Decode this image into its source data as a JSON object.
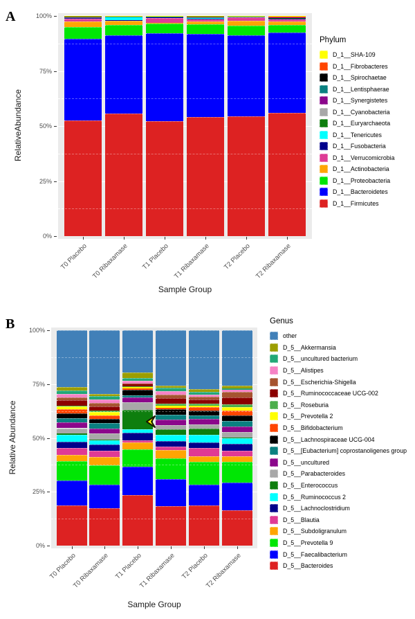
{
  "figure": {
    "background": "#ffffff",
    "panel_a_letter": "A",
    "panel_b_letter": "B"
  },
  "chart_data": [
    {
      "type": "bar",
      "variant": "stacked-percent",
      "panel": "A",
      "ylabel": "RelativeAbundance",
      "xlabel": "Sample Group",
      "legend_title": "Phylum",
      "legend_position": "right",
      "ylim": [
        0,
        100
      ],
      "grid": "white major and dashed minor lines on gray panel",
      "yticks": [
        {
          "value": 0,
          "label": "0%"
        },
        {
          "value": 25,
          "label": "25%"
        },
        {
          "value": 50,
          "label": "50%"
        },
        {
          "value": 75,
          "label": "75%"
        },
        {
          "value": 100,
          "label": "100%"
        }
      ],
      "categories": [
        "T0 Placebo",
        "T0 Ribaxamase",
        "T1 Placebo",
        "T1 Ribaxamase",
        "T2 Placebo",
        "T2 Ribaxamase"
      ],
      "stacking_note": "series listed bottom-to-top; legend shows reverse order",
      "series": [
        {
          "name": "D_1__Firmicutes",
          "color": "#DD2222",
          "values": [
            52.4,
            55.8,
            52.4,
            54.0,
            54.5,
            56.0
          ]
        },
        {
          "name": "D_1__Bacteroidetes",
          "color": "#0000FE",
          "values": [
            37.3,
            35.4,
            39.9,
            37.8,
            36.9,
            36.3
          ]
        },
        {
          "name": "D_1__Proteobacteria",
          "color": "#00E604",
          "values": [
            5.3,
            4.6,
            4.5,
            4.5,
            4.4,
            3.7
          ]
        },
        {
          "name": "D_1__Actinobacteria",
          "color": "#FFA503",
          "values": [
            2.4,
            2.0,
            0.5,
            1.2,
            2.3,
            1.5
          ]
        },
        {
          "name": "D_1__Verrucomicrobia",
          "color": "#DE3C96",
          "values": [
            1.3,
            0.3,
            2.2,
            1.0,
            1.7,
            0.8
          ]
        },
        {
          "name": "D_1__Fusobacteria",
          "color": "#00008B",
          "values": [
            0.5,
            0.15,
            0.3,
            0.5,
            0.1,
            0.4
          ]
        },
        {
          "name": "D_1__Tenericutes",
          "color": "#00FFFF",
          "values": [
            0.1,
            1.3,
            0.1,
            0.2,
            0.05,
            0.3
          ]
        },
        {
          "name": "D_1__Euryarchaeota",
          "color": "#0E7E0E",
          "values": [
            0.1,
            0.1,
            0.05,
            0.2,
            0.05,
            0.2
          ]
        },
        {
          "name": "D_1__Cyanobacteria",
          "color": "#A8A8A8",
          "values": [
            0.1,
            0.05,
            0.05,
            0.1,
            0.05,
            0.2
          ]
        },
        {
          "name": "D_1__Synergistetes",
          "color": "#8B078B",
          "values": [
            0.1,
            0.05,
            0.05,
            0.1,
            0.05,
            0.1
          ]
        },
        {
          "name": "D_1__Lentisphaerae",
          "color": "#0A8080",
          "values": [
            0.1,
            0.05,
            0.05,
            0.1,
            0.05,
            0.1
          ]
        },
        {
          "name": "D_1__Spirochaetae",
          "color": "#000000",
          "values": [
            0.1,
            0.05,
            0.05,
            0.1,
            0.05,
            0.1
          ]
        },
        {
          "name": "D_1__Fibrobacteres",
          "color": "#FF4500",
          "values": [
            0.1,
            0.05,
            0.05,
            0.1,
            0.05,
            0.1
          ]
        },
        {
          "name": "D_1__SHA-109",
          "color": "#FFFF00",
          "values": [
            0.1,
            0.1,
            0.1,
            0.1,
            0.1,
            0.2
          ]
        }
      ]
    },
    {
      "type": "bar",
      "variant": "stacked-percent",
      "panel": "B",
      "ylabel": "Relative Abundance",
      "xlabel": "Sample Group",
      "legend_title": "Genus",
      "legend_position": "right",
      "ylim": [
        0,
        100
      ],
      "grid": "white major and dashed minor lines on gray panel",
      "yticks": [
        {
          "value": 0,
          "label": "0%"
        },
        {
          "value": 25,
          "label": "25%"
        },
        {
          "value": 50,
          "label": "50%"
        },
        {
          "value": 75,
          "label": "75%"
        },
        {
          "value": 100,
          "label": "100%"
        }
      ],
      "categories": [
        "T0 Placebo",
        "T0 Ribaxamase",
        "T1 Placebo",
        "T1 Ribaxamase",
        "T2 Placebo",
        "T2 Ribaxamase"
      ],
      "stacking_note": "series listed bottom-to-top; legend shows reverse order",
      "series": [
        {
          "name": "D_5__Bacteroides",
          "color": "#DD2222",
          "values": [
            18.6,
            17.4,
            23.5,
            18.2,
            18.6,
            16.5
          ]
        },
        {
          "name": "D_5__Faecalibacterium",
          "color": "#0000FE",
          "values": [
            11.6,
            11.0,
            13.3,
            12.8,
            9.8,
            12.6
          ]
        },
        {
          "name": "D_5__Prevotella 9",
          "color": "#00E604",
          "values": [
            9.0,
            9.0,
            8.0,
            9.5,
            10.5,
            9.8
          ]
        },
        {
          "name": "D_5__Subdoligranulum",
          "color": "#FFA503",
          "values": [
            3.0,
            3.7,
            3.2,
            4.0,
            2.7,
            2.6
          ]
        },
        {
          "name": "D_5__Blautia",
          "color": "#E03A94",
          "values": [
            3.0,
            3.1,
            1.0,
            1.6,
            3.7,
            2.6
          ]
        },
        {
          "name": "D_5__Lachnoclostridium",
          "color": "#00008B",
          "values": [
            3.0,
            2.6,
            3.4,
            2.6,
            2.6,
            3.2
          ]
        },
        {
          "name": "D_5__Ruminococcus 2",
          "color": "#00FFFF",
          "values": [
            3.2,
            2.1,
            1.6,
            2.6,
            3.7,
            2.6
          ]
        },
        {
          "name": "D_5__Enterococcus",
          "color": "#0E7E0E",
          "values": [
            0.6,
            0.4,
            9.0,
            2.6,
            2.6,
            0.3
          ]
        },
        {
          "name": "D_5__Parabacteroides",
          "color": "#A8A8A8",
          "values": [
            2.5,
            2.8,
            3.4,
            1.9,
            2.1,
            2.6
          ]
        },
        {
          "name": "D_5__uncultured",
          "color": "#8B078B",
          "values": [
            2.6,
            2.1,
            2.4,
            2.8,
            2.6,
            2.6
          ]
        },
        {
          "name": "D_5__[Eubacterium] coprostanoligenes group",
          "color": "#0A8080",
          "values": [
            2.1,
            2.6,
            1.0,
            2.1,
            1.6,
            2.6
          ]
        },
        {
          "name": "D_5__Lachnospiraceae UCG-004",
          "color": "#000000",
          "values": [
            2.2,
            2.1,
            2.6,
            2.6,
            2.1,
            2.6
          ]
        },
        {
          "name": "D_5__Bifidobacterium",
          "color": "#FF4500",
          "values": [
            2.1,
            1.6,
            0.5,
            0.8,
            1.6,
            2.1
          ]
        },
        {
          "name": "D_5__Prevotella 2",
          "color": "#FFFF00",
          "values": [
            1.0,
            1.6,
            0.8,
            0.8,
            0.8,
            1.5
          ]
        },
        {
          "name": "D_5__Roseburia",
          "color": "#4BAE4B",
          "values": [
            0.6,
            0.5,
            0.4,
            1.0,
            1.0,
            1.5
          ]
        },
        {
          "name": "D_5__Ruminococcaceae UCG-002",
          "color": "#8B0000",
          "values": [
            2.4,
            2.1,
            0.8,
            2.6,
            1.7,
            3.2
          ]
        },
        {
          "name": "D_5__Escherichia-Shigella",
          "color": "#A65430",
          "values": [
            1.4,
            1.6,
            0.5,
            1.6,
            1.3,
            2.6
          ]
        },
        {
          "name": "D_5__Alistipes",
          "color": "#F583C5",
          "values": [
            1.6,
            1.6,
            1.0,
            1.6,
            1.0,
            0.8
          ]
        },
        {
          "name": "D_5__uncultured bacterium",
          "color": "#22A877",
          "values": [
            1.5,
            1.6,
            1.4,
            1.6,
            1.3,
            0.8
          ]
        },
        {
          "name": "D_5__Akkermansia",
          "color": "#9C9E00",
          "values": [
            1.5,
            1.0,
            2.6,
            1.0,
            1.4,
            1.2
          ]
        },
        {
          "name": "other",
          "color": "#4180B8",
          "values": [
            26.5,
            29.5,
            19.6,
            25.7,
            27.3,
            25.7
          ]
        }
      ],
      "annotation": {
        "shape": "left-arrowhead",
        "fill": "#FFFF00",
        "stroke": "#1A1A00",
        "target_series": "D_5__Enterococcus",
        "category_index": 2,
        "y_percent": 58
      }
    }
  ]
}
